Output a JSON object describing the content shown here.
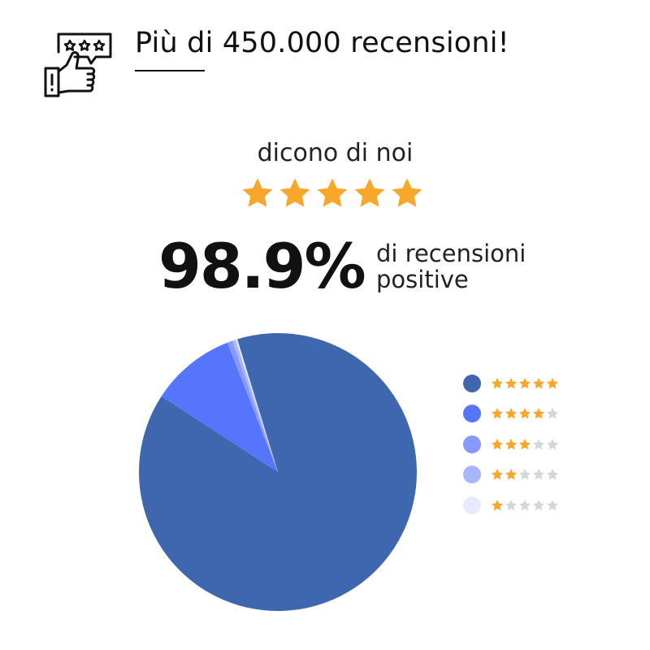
{
  "header": {
    "title": "Più di 450.000 recensioni!",
    "icon": "thumbs-up-review-icon"
  },
  "subtitle": "dicono di noi",
  "rating_stars": 5,
  "star_color": "#f9a72b",
  "star_empty_color": "#d6d6d6",
  "stat": {
    "value": "98.9%",
    "line1": "di recensioni",
    "line2": "positive"
  },
  "chart_data": {
    "type": "pie",
    "categories": [
      "5 stars",
      "4 stars",
      "3 stars",
      "2 stars",
      "1 star"
    ],
    "values": [
      88.9,
      9.9,
      0.6,
      0.4,
      0.2
    ],
    "stars": [
      5,
      4,
      3,
      2,
      1
    ],
    "colors": [
      "#3f67b0",
      "#5575fc",
      "#8799fa",
      "#a9b6fb",
      "#e8ebfd"
    ],
    "legend": "right"
  }
}
